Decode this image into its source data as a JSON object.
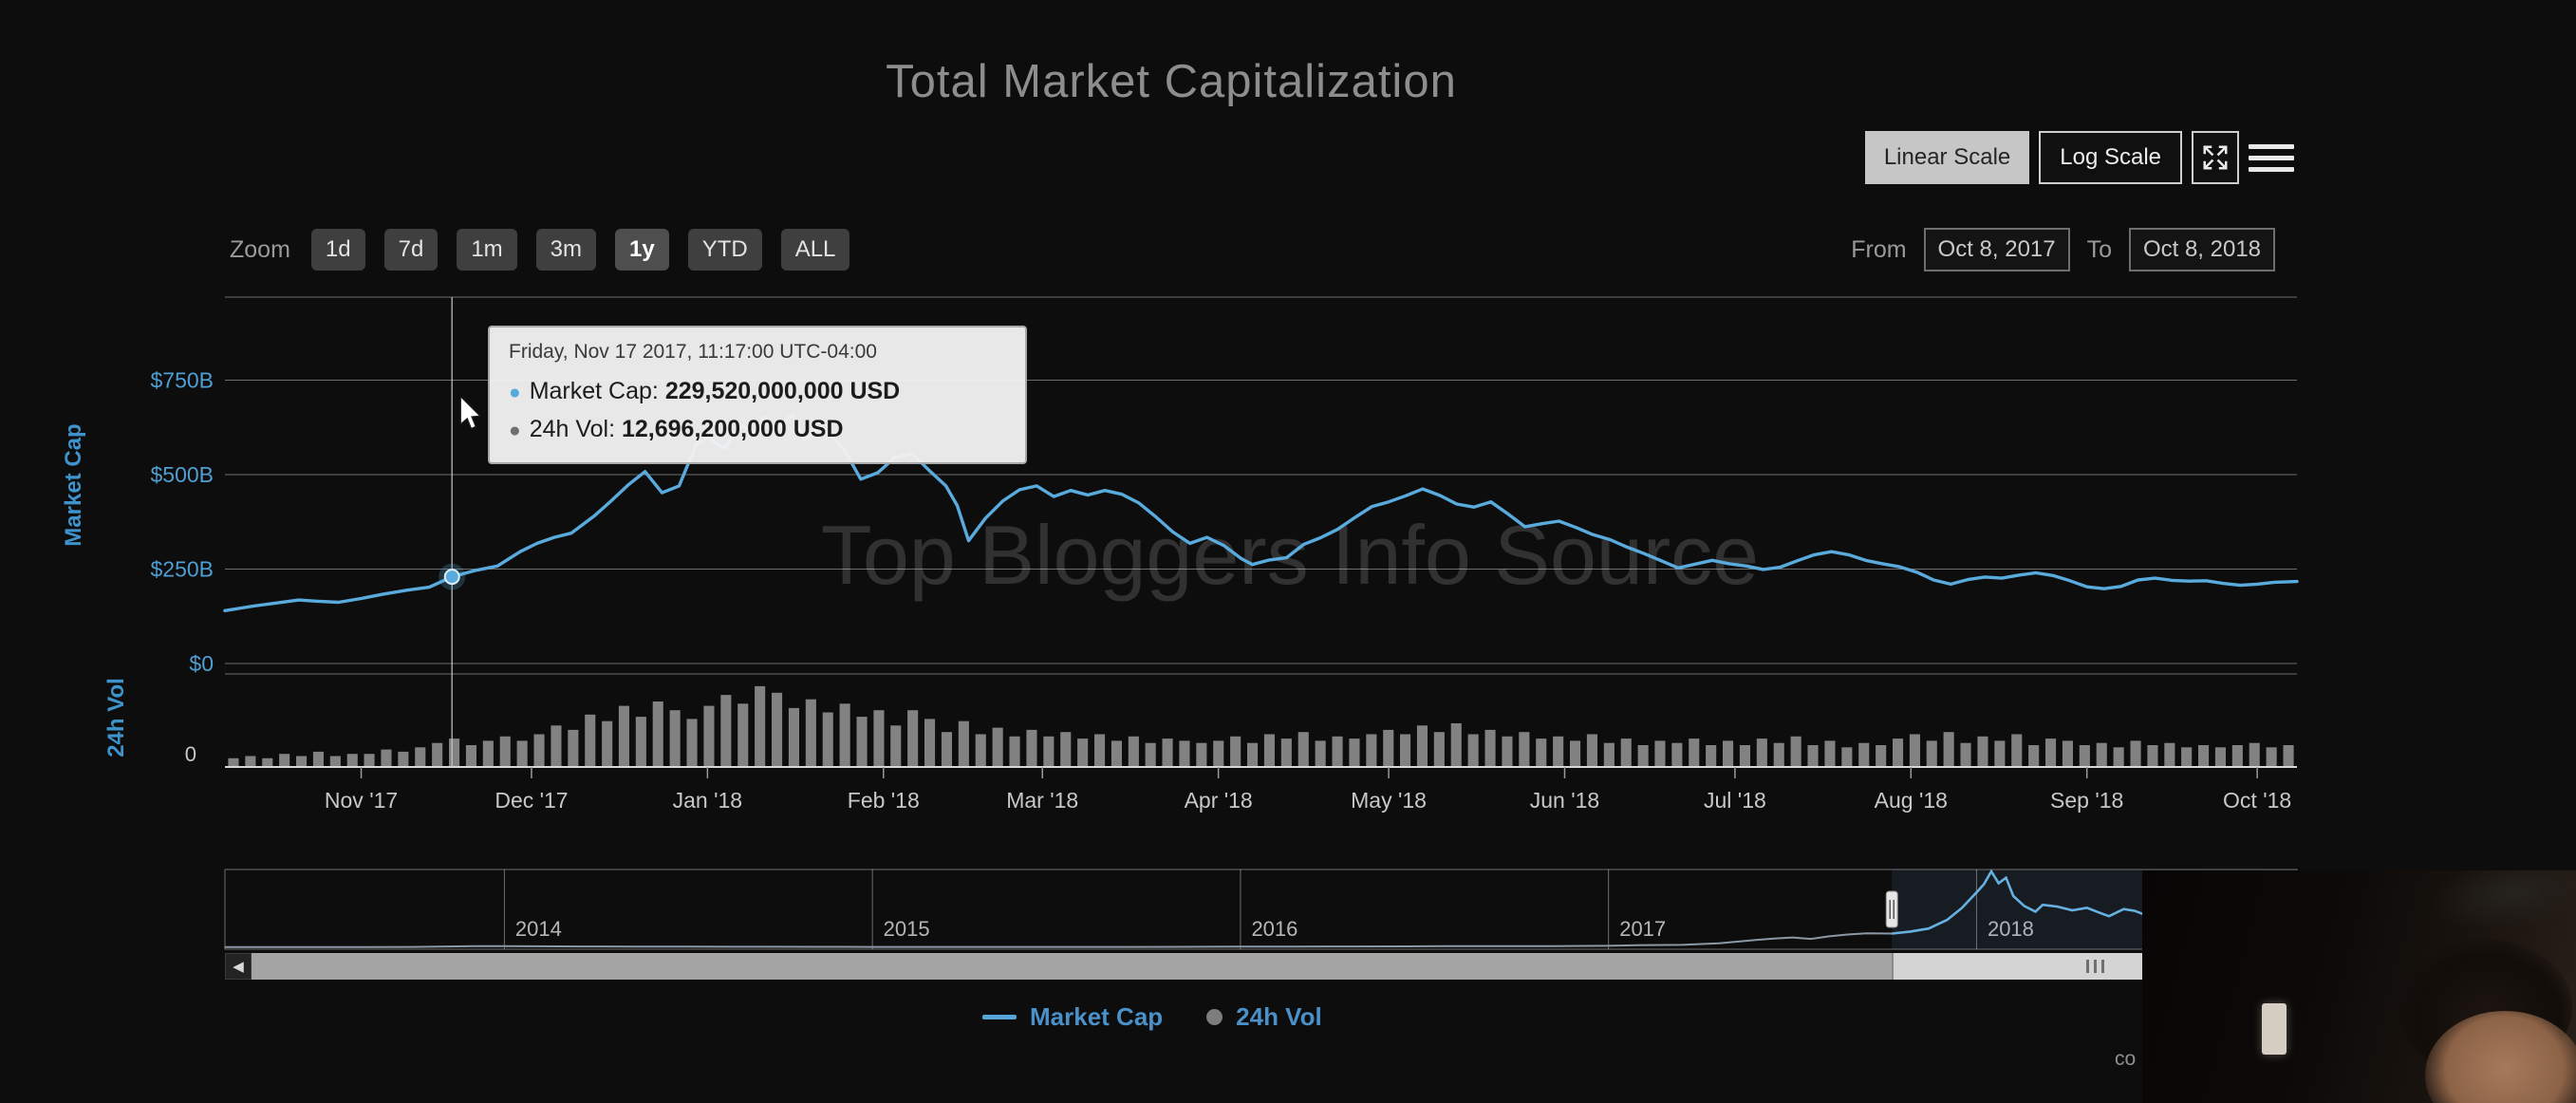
{
  "page": {
    "title": "Total Market Capitalization",
    "watermark": "Top Bloggers Info Source",
    "corner_text": "co",
    "background_color": "#0d0d0d"
  },
  "icons": {
    "fullscreen_name": "expand-arrows-icon",
    "menu_name": "hamburger-menu-icon",
    "scroll_left_glyph": "◀",
    "tooltip_bullet": "●"
  },
  "scale_toggle": {
    "linear_label": "Linear Scale",
    "log_label": "Log Scale",
    "selected": "Linear Scale"
  },
  "zoom": {
    "label": "Zoom",
    "options": [
      "1d",
      "7d",
      "1m",
      "3m",
      "1y",
      "YTD",
      "ALL"
    ],
    "selected": "1y"
  },
  "date_range": {
    "from_label": "From",
    "from_value": "Oct 8, 2017",
    "to_label": "To",
    "to_value": "Oct 8, 2018"
  },
  "tooltip": {
    "date": "Friday, Nov 17 2017, 11:17:00 UTC-04:00",
    "rows": [
      {
        "name": "Market Cap",
        "label": "Market Cap:",
        "value": "229,520,000,000 USD",
        "bullet_color": "#55aadd"
      },
      {
        "name": "24h Vol",
        "label": "24h Vol:",
        "value": "12,696,200,000 USD",
        "bullet_color": "#6f6f6f"
      }
    ]
  },
  "legend": {
    "items": [
      {
        "label": "Market Cap",
        "marker": "line",
        "marker_color": "#55a5d9",
        "label_color": "#4a90c9"
      },
      {
        "label": "24h Vol",
        "marker": "circle",
        "marker_color": "#7d7d7d",
        "label_color": "#4a90c9"
      }
    ]
  },
  "chart_data": {
    "type": "line",
    "title": "Total Market Capitalization",
    "grid": true,
    "legend_position": "bottom",
    "range": {
      "start": "Oct 8, 2017",
      "end": "Oct 8, 2018",
      "days": 365
    },
    "x_axis": {
      "ticks": [
        {
          "label": "Nov '17",
          "day": 24
        },
        {
          "label": "Dec '17",
          "day": 54
        },
        {
          "label": "Jan '18",
          "day": 85
        },
        {
          "label": "Feb '18",
          "day": 116
        },
        {
          "label": "Mar '18",
          "day": 144
        },
        {
          "label": "Apr '18",
          "day": 175
        },
        {
          "label": "May '18",
          "day": 205
        },
        {
          "label": "Jun '18",
          "day": 236
        },
        {
          "label": "Jul '18",
          "day": 266
        },
        {
          "label": "Aug '18",
          "day": 297
        },
        {
          "label": "Sep '18",
          "day": 328
        },
        {
          "label": "Oct '18",
          "day": 358
        }
      ]
    },
    "y_axis_main": {
      "label": "Market Cap",
      "unit": "USD billions",
      "ylim": [
        0,
        1000
      ],
      "ticks": [
        {
          "label": "$750B",
          "value": 750
        },
        {
          "label": "$500B",
          "value": 500
        },
        {
          "label": "$250B",
          "value": 250
        },
        {
          "label": "$0",
          "value": 0
        }
      ]
    },
    "y_axis_volume": {
      "label": "24h Vol",
      "unit": "USD billions",
      "max": 40,
      "ticks": [
        {
          "label": "0",
          "value": 0
        }
      ]
    },
    "market_cap_series": {
      "name": "Market Cap",
      "color": "#5aabdd",
      "unit": "USD billions",
      "points": [
        [
          0,
          140
        ],
        [
          5,
          152
        ],
        [
          9,
          160
        ],
        [
          13,
          168
        ],
        [
          16,
          165
        ],
        [
          20,
          162
        ],
        [
          24,
          172
        ],
        [
          28,
          184
        ],
        [
          32,
          194
        ],
        [
          36,
          202
        ],
        [
          40,
          229.5
        ],
        [
          44,
          246
        ],
        [
          48,
          258
        ],
        [
          52,
          296
        ],
        [
          55,
          318
        ],
        [
          58,
          334
        ],
        [
          61,
          345
        ],
        [
          65,
          390
        ],
        [
          68,
          430
        ],
        [
          71,
          472
        ],
        [
          74,
          508
        ],
        [
          77,
          452
        ],
        [
          80,
          470
        ],
        [
          83,
          580
        ],
        [
          85,
          598
        ],
        [
          88,
          570
        ],
        [
          91,
          630
        ],
        [
          93,
          610
        ],
        [
          95,
          652
        ],
        [
          97,
          615
        ],
        [
          100,
          660
        ],
        [
          102,
          592
        ],
        [
          105,
          628
        ],
        [
          107,
          600
        ],
        [
          109,
          568
        ],
        [
          112,
          488
        ],
        [
          115,
          505
        ],
        [
          118,
          545
        ],
        [
          121,
          556
        ],
        [
          124,
          512
        ],
        [
          127,
          470
        ],
        [
          129,
          418
        ],
        [
          131,
          325
        ],
        [
          134,
          385
        ],
        [
          137,
          430
        ],
        [
          140,
          460
        ],
        [
          143,
          470
        ],
        [
          146,
          442
        ],
        [
          149,
          458
        ],
        [
          152,
          446
        ],
        [
          155,
          458
        ],
        [
          158,
          448
        ],
        [
          161,
          425
        ],
        [
          164,
          388
        ],
        [
          167,
          348
        ],
        [
          170,
          318
        ],
        [
          173,
          334
        ],
        [
          176,
          312
        ],
        [
          179,
          278
        ],
        [
          181,
          262
        ],
        [
          184,
          274
        ],
        [
          187,
          280
        ],
        [
          190,
          315
        ],
        [
          193,
          333
        ],
        [
          196,
          355
        ],
        [
          199,
          386
        ],
        [
          202,
          415
        ],
        [
          205,
          428
        ],
        [
          208,
          444
        ],
        [
          211,
          462
        ],
        [
          214,
          445
        ],
        [
          217,
          422
        ],
        [
          220,
          414
        ],
        [
          223,
          428
        ],
        [
          226,
          396
        ],
        [
          229,
          362
        ],
        [
          232,
          370
        ],
        [
          235,
          377
        ],
        [
          238,
          360
        ],
        [
          241,
          341
        ],
        [
          244,
          328
        ],
        [
          247,
          308
        ],
        [
          250,
          291
        ],
        [
          253,
          272
        ],
        [
          256,
          253
        ],
        [
          259,
          263
        ],
        [
          262,
          273
        ],
        [
          265,
          264
        ],
        [
          268,
          258
        ],
        [
          271,
          249
        ],
        [
          274,
          255
        ],
        [
          277,
          272
        ],
        [
          280,
          288
        ],
        [
          283,
          296
        ],
        [
          286,
          288
        ],
        [
          289,
          273
        ],
        [
          292,
          264
        ],
        [
          295,
          256
        ],
        [
          298,
          242
        ],
        [
          301,
          221
        ],
        [
          304,
          210
        ],
        [
          307,
          222
        ],
        [
          310,
          229
        ],
        [
          313,
          226
        ],
        [
          316,
          234
        ],
        [
          319,
          240
        ],
        [
          322,
          233
        ],
        [
          325,
          219
        ],
        [
          328,
          203
        ],
        [
          331,
          198
        ],
        [
          334,
          204
        ],
        [
          337,
          221
        ],
        [
          340,
          226
        ],
        [
          343,
          220
        ],
        [
          346,
          218
        ],
        [
          349,
          219
        ],
        [
          352,
          212
        ],
        [
          355,
          207
        ],
        [
          358,
          210
        ],
        [
          361,
          215
        ],
        [
          365,
          217
        ]
      ]
    },
    "volume_series": {
      "name": "24h Vol",
      "color": "#828282",
      "unit": "USD billions",
      "values": [
        4,
        5,
        4,
        6,
        5,
        7,
        5,
        6,
        6,
        8,
        7,
        9,
        11,
        13,
        10,
        12,
        14,
        12,
        15,
        19,
        17,
        24,
        21,
        28,
        23,
        30,
        26,
        22,
        28,
        33,
        29,
        37,
        34,
        27,
        31,
        25,
        29,
        23,
        26,
        19,
        26,
        22,
        16,
        21,
        15,
        18,
        14,
        17,
        14,
        16,
        13,
        15,
        12,
        14,
        11,
        13,
        12,
        11,
        12,
        14,
        11,
        15,
        13,
        16,
        12,
        14,
        13,
        15,
        17,
        15,
        19,
        16,
        20,
        15,
        17,
        14,
        16,
        13,
        14,
        12,
        15,
        11,
        13,
        10,
        12,
        11,
        13,
        10,
        12,
        10,
        13,
        11,
        14,
        10,
        12,
        9,
        11,
        10,
        13,
        15,
        12,
        16,
        11,
        14,
        12,
        15,
        10,
        13,
        12,
        10,
        11,
        9,
        12,
        10,
        11,
        9,
        10,
        9,
        10,
        11,
        9,
        10
      ]
    },
    "crosshair": {
      "day": 40,
      "market_cap_billions": 229.52
    },
    "navigator": {
      "year_ticks": [
        2014,
        2015,
        2016,
        2017,
        2018
      ],
      "x_range_years": [
        2013.24,
        2018.87
      ],
      "max_billions": 830,
      "selection_start_year": 2017.77,
      "points": [
        [
          2013.24,
          2
        ],
        [
          2013.5,
          2
        ],
        [
          2013.75,
          4
        ],
        [
          2013.92,
          12
        ],
        [
          2014.0,
          14
        ],
        [
          2014.08,
          11
        ],
        [
          2014.2,
          9
        ],
        [
          2014.35,
          8
        ],
        [
          2014.5,
          7.5
        ],
        [
          2014.7,
          6
        ],
        [
          2014.85,
          5.5
        ],
        [
          2015.0,
          4.5
        ],
        [
          2015.08,
          3.8
        ],
        [
          2015.25,
          4.2
        ],
        [
          2015.5,
          4
        ],
        [
          2015.7,
          4.5
        ],
        [
          2015.85,
          5.5
        ],
        [
          2016.0,
          7
        ],
        [
          2016.15,
          8
        ],
        [
          2016.3,
          9
        ],
        [
          2016.45,
          10.5
        ],
        [
          2016.55,
          12.5
        ],
        [
          2016.7,
          12
        ],
        [
          2016.85,
          13.5
        ],
        [
          2017.0,
          17
        ],
        [
          2017.08,
          24
        ],
        [
          2017.2,
          27
        ],
        [
          2017.3,
          45
        ],
        [
          2017.4,
          80
        ],
        [
          2017.45,
          95
        ],
        [
          2017.5,
          108
        ],
        [
          2017.55,
          92
        ],
        [
          2017.6,
          120
        ],
        [
          2017.65,
          140
        ],
        [
          2017.7,
          152
        ],
        [
          2017.77,
          150
        ],
        [
          2017.82,
          172
        ],
        [
          2017.87,
          205
        ],
        [
          2017.92,
          300
        ],
        [
          2017.96,
          430
        ],
        [
          2018.0,
          600
        ],
        [
          2018.02,
          690
        ],
        [
          2018.04,
          830
        ],
        [
          2018.06,
          700
        ],
        [
          2018.08,
          760
        ],
        [
          2018.1,
          560
        ],
        [
          2018.13,
          450
        ],
        [
          2018.16,
          390
        ],
        [
          2018.18,
          465
        ],
        [
          2018.22,
          445
        ],
        [
          2018.26,
          405
        ],
        [
          2018.3,
          432
        ],
        [
          2018.33,
          385
        ],
        [
          2018.36,
          340
        ],
        [
          2018.4,
          418
        ],
        [
          2018.43,
          398
        ],
        [
          2018.46,
          352
        ],
        [
          2018.5,
          330
        ],
        [
          2018.55,
          292
        ],
        [
          2018.6,
          268
        ],
        [
          2018.65,
          252
        ],
        [
          2018.7,
          222
        ],
        [
          2018.74,
          232
        ],
        [
          2018.78,
          228
        ],
        [
          2018.83,
          222
        ],
        [
          2018.87,
          220
        ]
      ]
    }
  }
}
